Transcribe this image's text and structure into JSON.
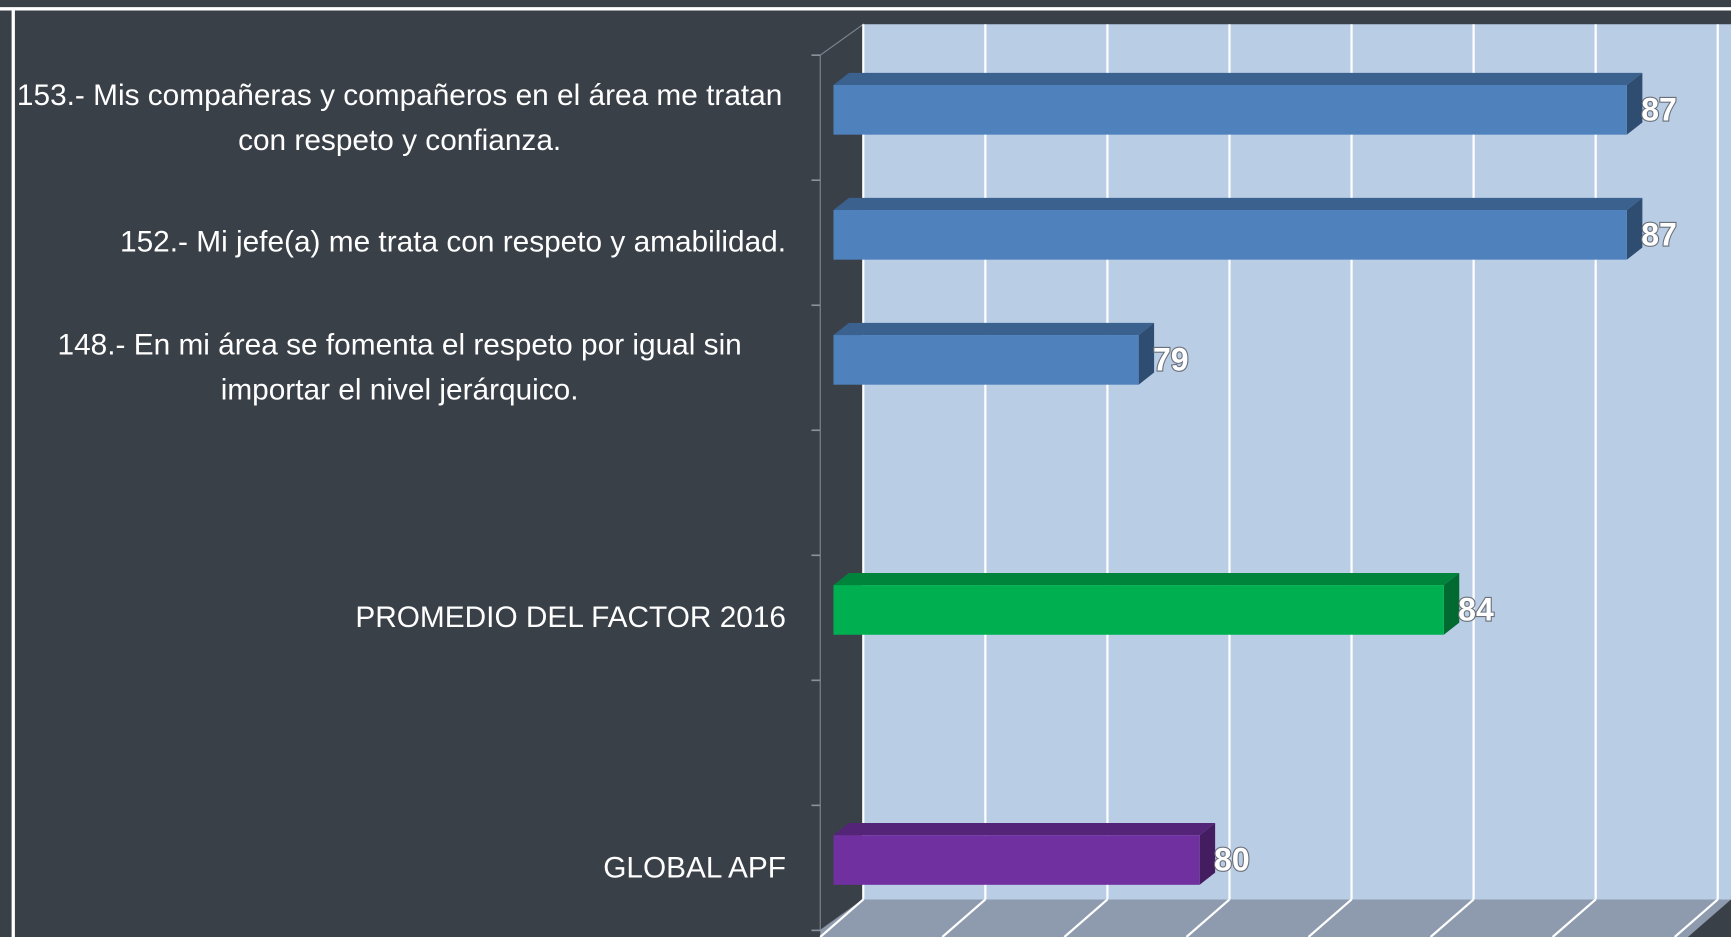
{
  "chart_data": {
    "type": "bar3d",
    "orientation": "horizontal",
    "categories": [
      "153.- Mis compañeras y compañeros en el área me tratan con respeto y confianza.",
      "152.- Mi jefe(a) me trata con respeto y amabilidad.",
      "148.- En mi área se fomenta el respeto por igual sin importar el nivel jerárquico.",
      null,
      "PROMEDIO DEL FACTOR 2016",
      null,
      "GLOBAL APF"
    ],
    "values": [
      87,
      87,
      79,
      null,
      84,
      null,
      80
    ],
    "colors": [
      "#4f81bd",
      "#4f81bd",
      "#4f81bd",
      null,
      "#00b050",
      null,
      "#7030a0"
    ],
    "xlim": [
      74,
      88
    ],
    "xticks": [
      74,
      76,
      78,
      80,
      82,
      84,
      86,
      88
    ],
    "grid": true
  }
}
